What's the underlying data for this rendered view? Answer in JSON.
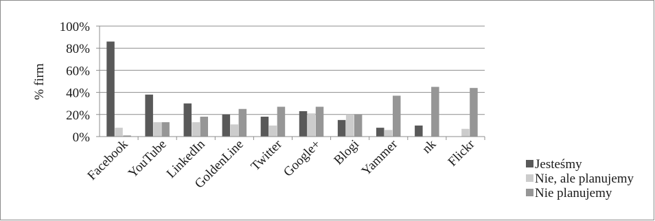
{
  "chart_data": {
    "type": "bar",
    "title": "",
    "xlabel": "",
    "ylabel": "% firm",
    "ylim": [
      0,
      100
    ],
    "yticks": [
      "0%",
      "20%",
      "40%",
      "60%",
      "80%",
      "100%"
    ],
    "grid": true,
    "legend_position": "right",
    "categories": [
      "Facebook",
      "YouTube",
      "LinkedIn",
      "GoldenLine",
      "Twitter",
      "Google+",
      "Blogi",
      "Yammer",
      "nk",
      "Flickr"
    ],
    "series": [
      {
        "name": "Jesteśmy",
        "color": "#595959",
        "values": [
          86,
          38,
          30,
          20,
          18,
          23,
          15,
          8,
          10,
          0
        ]
      },
      {
        "name": "Nie, ale planujemy",
        "color": "#cccccc",
        "values": [
          8,
          13,
          13,
          11,
          10,
          21,
          20,
          6,
          0,
          7
        ]
      },
      {
        "name": "Nie planujemy",
        "color": "#969696",
        "values": [
          1,
          13,
          18,
          25,
          27,
          27,
          20,
          37,
          45,
          44
        ]
      }
    ]
  }
}
